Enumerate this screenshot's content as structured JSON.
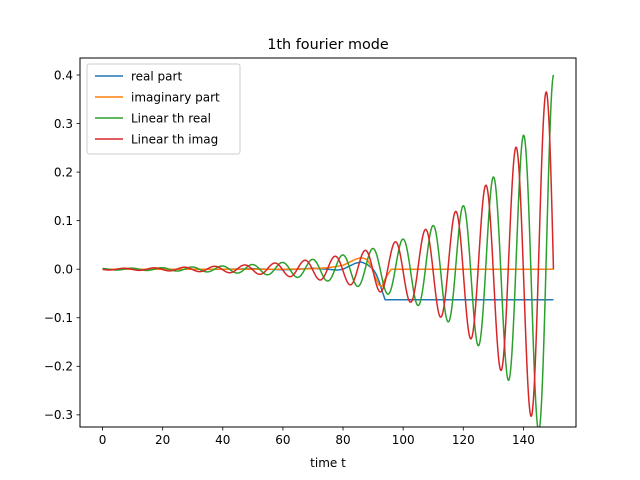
{
  "chart_data": {
    "type": "line",
    "title": "1th fourier mode",
    "xlabel": "time t",
    "ylabel": "",
    "xlim": [
      -7.5,
      157.5
    ],
    "ylim": [
      -0.325,
      0.435
    ],
    "xticks": [
      {
        "value": 0,
        "label": "0"
      },
      {
        "value": 20,
        "label": "20"
      },
      {
        "value": 40,
        "label": "40"
      },
      {
        "value": 60,
        "label": "60"
      },
      {
        "value": 80,
        "label": "80"
      },
      {
        "value": 100,
        "label": "100"
      },
      {
        "value": 120,
        "label": "120"
      },
      {
        "value": 140,
        "label": "140"
      }
    ],
    "yticks": [
      {
        "value": -0.3,
        "label": "−0.3"
      },
      {
        "value": -0.2,
        "label": "−0.2"
      },
      {
        "value": -0.1,
        "label": "−0.1"
      },
      {
        "value": 0.0,
        "label": "0.0"
      },
      {
        "value": 0.1,
        "label": "0.1"
      },
      {
        "value": 0.2,
        "label": "0.2"
      },
      {
        "value": 0.3,
        "label": "0.3"
      },
      {
        "value": 0.4,
        "label": "0.4"
      }
    ],
    "grid": false,
    "legend_position": "top-left",
    "series": [
      {
        "name": "real part",
        "color": "#1f77b4",
        "x": [
          0,
          20,
          40,
          50,
          55,
          60,
          65,
          70,
          75,
          78,
          80,
          82,
          84,
          86,
          88,
          90,
          91,
          92,
          93,
          94,
          96,
          100,
          120,
          140,
          150
        ],
        "y": [
          0.0,
          0.0,
          0.0,
          0.001,
          0.0,
          -0.001,
          0.0,
          0.002,
          0.0,
          -0.002,
          0.0,
          0.006,
          0.012,
          0.015,
          0.01,
          0.0,
          -0.01,
          -0.025,
          -0.045,
          -0.063,
          -0.063,
          -0.063,
          -0.063,
          -0.063,
          -0.063
        ]
      },
      {
        "name": "imaginary part",
        "color": "#ff7f0e",
        "x": [
          0,
          20,
          40,
          50,
          60,
          70,
          75,
          80,
          82,
          84,
          86,
          88,
          89,
          90,
          91,
          92,
          93,
          94,
          96,
          100,
          120,
          140,
          149.5,
          150
        ],
        "y": [
          0.0,
          0.0,
          0.0,
          0.0,
          0.0,
          0.001,
          0.003,
          0.008,
          0.014,
          0.02,
          0.024,
          0.02,
          0.01,
          -0.005,
          -0.02,
          -0.033,
          -0.035,
          -0.02,
          0.0,
          0.0,
          0.0,
          0.0,
          0.0,
          0.0
        ]
      },
      {
        "name": "Linear th real",
        "color": "#2ca02c",
        "envelope": {
          "base": 0.0015,
          "t_ref": 150,
          "amp_ref": 0.4
        },
        "omega": 0.6267,
        "phase": -94.006,
        "t_max": 150,
        "samples": 1500
      },
      {
        "name": "Linear th imag",
        "color": "#d62728",
        "envelope": {
          "base": 0.0015,
          "t_ref": 150,
          "amp_ref": 0.4
        },
        "omega": 0.6267,
        "phase": -92.435,
        "t_max": 150,
        "end_value": 0.0,
        "samples": 1500
      }
    ]
  }
}
